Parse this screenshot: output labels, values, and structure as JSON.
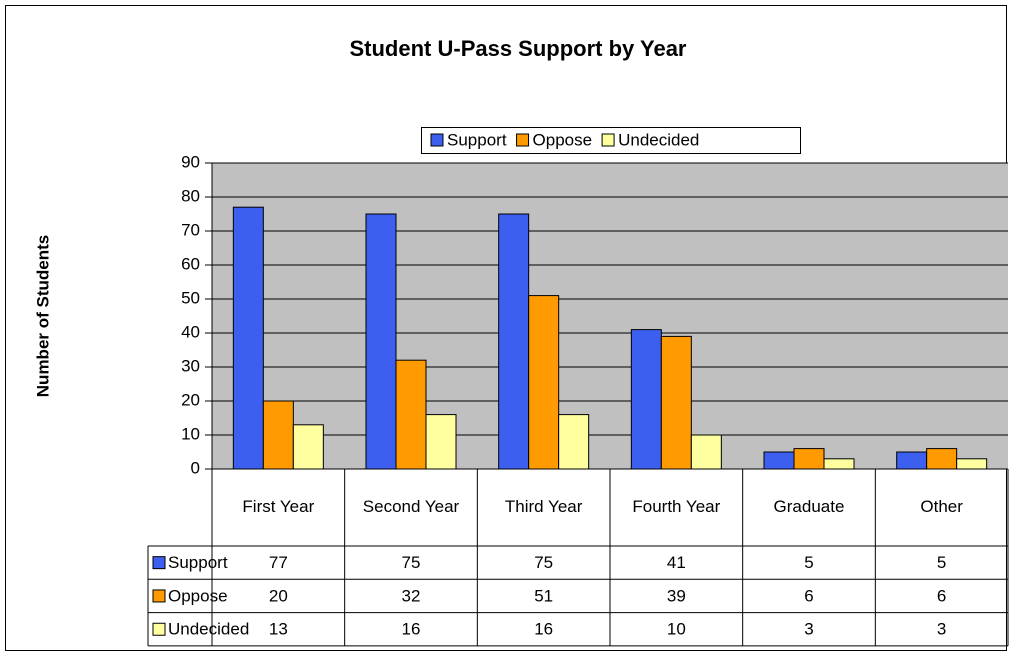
{
  "chart_data": {
    "type": "bar",
    "title": "Student U-Pass Support by Year",
    "y_label": "Number of Students",
    "categories": [
      "First Year",
      "Second Year",
      "Third Year",
      "Fourth Year",
      "Graduate",
      "Other"
    ],
    "series": [
      {
        "name": "Support",
        "color": "#3d5ff0",
        "values": [
          77,
          75,
          75,
          41,
          5,
          5
        ]
      },
      {
        "name": "Oppose",
        "color": "#ff9a00",
        "values": [
          20,
          32,
          51,
          39,
          6,
          6
        ]
      },
      {
        "name": "Undecided",
        "color": "#ffffa0",
        "values": [
          13,
          16,
          16,
          10,
          3,
          3
        ]
      }
    ],
    "ylim": [
      0,
      90
    ],
    "yticks": [
      0,
      10,
      20,
      30,
      40,
      50,
      60,
      70,
      80,
      90
    ],
    "grid": true,
    "data_table": true
  }
}
